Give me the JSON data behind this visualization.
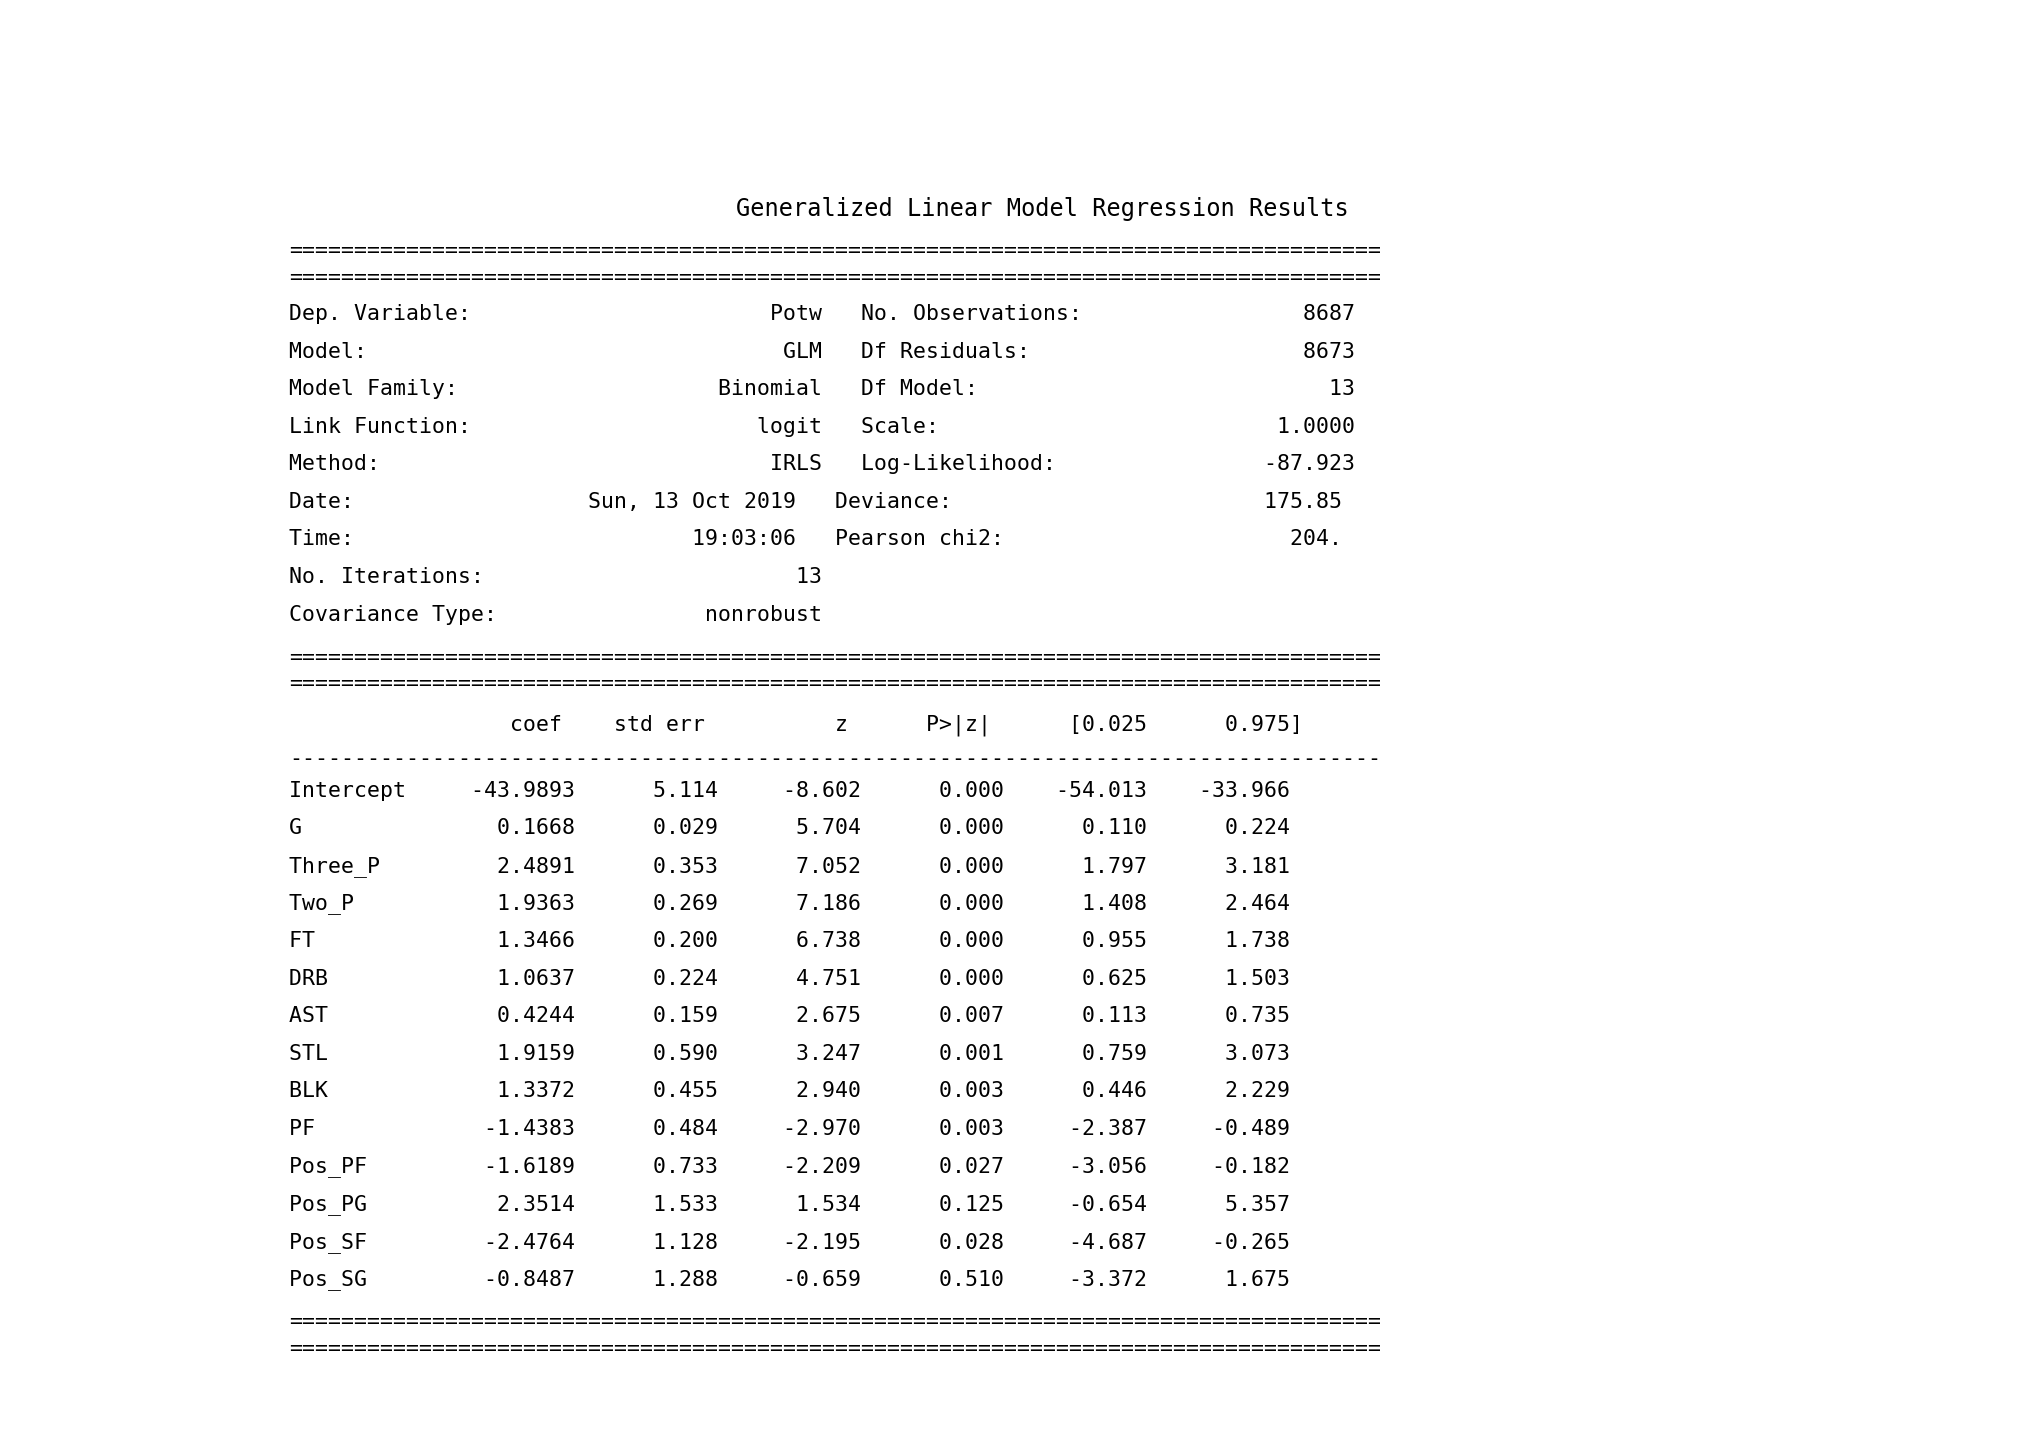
{
  "title": "Generalized Linear Model Regression Results",
  "bg_color": "#ffffff",
  "text_color": "#000000",
  "font_size": 15.5,
  "eq_line": "====================================================================================",
  "dash_line": "------------------------------------------------------------------------------------",
  "summary_lines": [
    "Dep. Variable:                       Potw   No. Observations:                 8687",
    "Model:                                GLM   Df Residuals:                     8673",
    "Model Family:                    Binomial   Df Model:                           13",
    "Link Function:                      logit   Scale:                          1.0000",
    "Method:                              IRLS   Log-Likelihood:                -87.923",
    "Date:                  Sun, 13 Oct 2019   Deviance:                        175.85",
    "Time:                          19:03:06   Pearson chi2:                      204.",
    "No. Iterations:                        13   ",
    "Covariance Type:                nonrobust   "
  ],
  "col_header_line": "                 coef    std err          z      P>|z|      [0.025      0.975]",
  "data_lines": [
    "Intercept     -43.9893      5.114     -8.602      0.000    -54.013    -33.966",
    "G               0.1668      0.029      5.704      0.000      0.110      0.224",
    "Three_P         2.4891      0.353      7.052      0.000      1.797      3.181",
    "Two_P           1.9363      0.269      7.186      0.000      1.408      2.464",
    "FT              1.3466      0.200      6.738      0.000      0.955      1.738",
    "DRB             1.0637      0.224      4.751      0.000      0.625      1.503",
    "AST             0.4244      0.159      2.675      0.007      0.113      0.735",
    "STL             1.9159      0.590      3.247      0.001      0.759      3.073",
    "BLK             1.3372      0.455      2.940      0.003      0.446      2.229",
    "PF             -1.4383      0.484     -2.970      0.003     -2.387     -0.489",
    "Pos_PF         -1.6189      0.733     -2.209      0.027     -3.056     -0.182",
    "Pos_PG          2.3514      1.533      1.534      0.125     -0.654      5.357",
    "Pos_SF         -2.4764      1.128     -2.195      0.028     -4.687     -0.265",
    "Pos_SG         -0.8487      1.288     -0.659      0.510     -3.372      1.675"
  ]
}
